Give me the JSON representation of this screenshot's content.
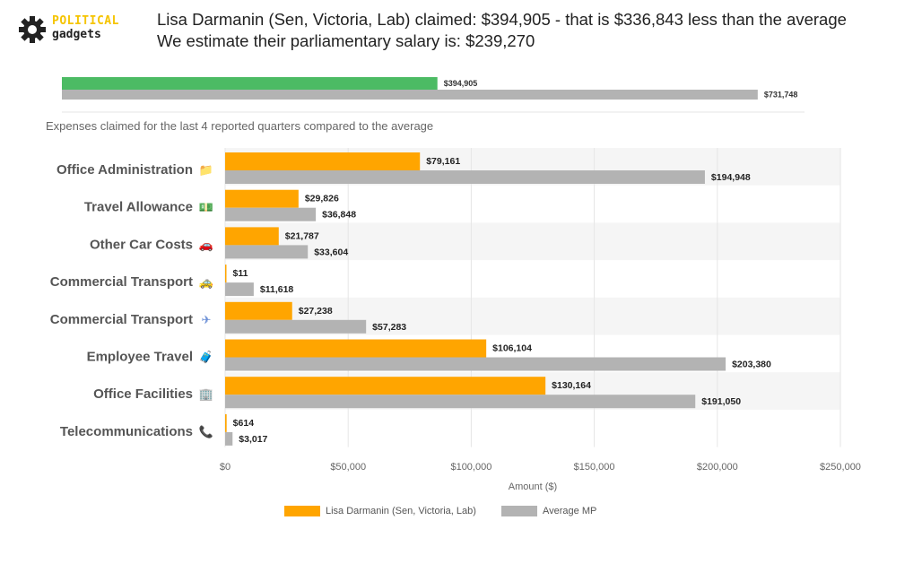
{
  "header": {
    "logo_line1": "POLITICAL",
    "logo_line2": "gadgets",
    "headline_line1": "Lisa Darmanin (Sen, Victoria, Lab) claimed: $394,905 - that is $336,843 less than the average",
    "headline_line2": "We estimate their parliamentary salary is: $239,270"
  },
  "colors": {
    "member_total": "#4cbb64",
    "average": "#b3b3b3",
    "member": "#ffa500",
    "band": "#f5f5f5"
  },
  "chart_data": [
    {
      "type": "bar",
      "orientation": "horizontal",
      "series": [
        {
          "name": "",
          "values": [
            394905
          ],
          "labels": [
            "$394,905"
          ]
        },
        {
          "name": "",
          "values": [
            731748
          ],
          "labels": [
            "$731,748"
          ]
        }
      ],
      "xlim": [
        0,
        780000
      ]
    },
    {
      "type": "bar",
      "orientation": "horizontal",
      "title": "Expenses claimed for the last 4 reported quarters compared to the average",
      "categories": [
        {
          "label": "Office Administration",
          "icon": "folder-icon"
        },
        {
          "label": "Travel Allowance",
          "icon": "money-icon"
        },
        {
          "label": "Other Car Costs",
          "icon": "car-icon"
        },
        {
          "label": "Commercial Transport",
          "icon": "taxi-icon"
        },
        {
          "label": "Commercial Transport",
          "icon": "airplane-icon"
        },
        {
          "label": "Employee Travel",
          "icon": "luggage-icon"
        },
        {
          "label": "Office Facilities",
          "icon": "building-icon"
        },
        {
          "label": "Telecommunications",
          "icon": "phone-icon"
        }
      ],
      "series": [
        {
          "name": "Lisa Darmanin  (Sen, Victoria, Lab)",
          "values": [
            79161,
            29826,
            21787,
            11,
            27238,
            106104,
            130164,
            614
          ],
          "labels": [
            "$79,161",
            "$29,826",
            "$21,787",
            "$11",
            "$27,238",
            "$106,104",
            "$130,164",
            "$614"
          ]
        },
        {
          "name": "Average MP",
          "values": [
            194948,
            36848,
            33604,
            11618,
            57283,
            203380,
            191050,
            3017
          ],
          "labels": [
            "$194,948",
            "$36,848",
            "$33,604",
            "$11,618",
            "$57,283",
            "$203,380",
            "$191,050",
            "$3,017"
          ]
        }
      ],
      "xticks": [
        "$0",
        "$50,000",
        "$100,000",
        "$150,000",
        "$200,000",
        "$250,000"
      ],
      "xtick_values": [
        0,
        50000,
        100000,
        150000,
        200000,
        250000
      ],
      "xlim": [
        0,
        250000
      ],
      "xlabel": "Amount ($)",
      "legend": "bottom"
    }
  ]
}
